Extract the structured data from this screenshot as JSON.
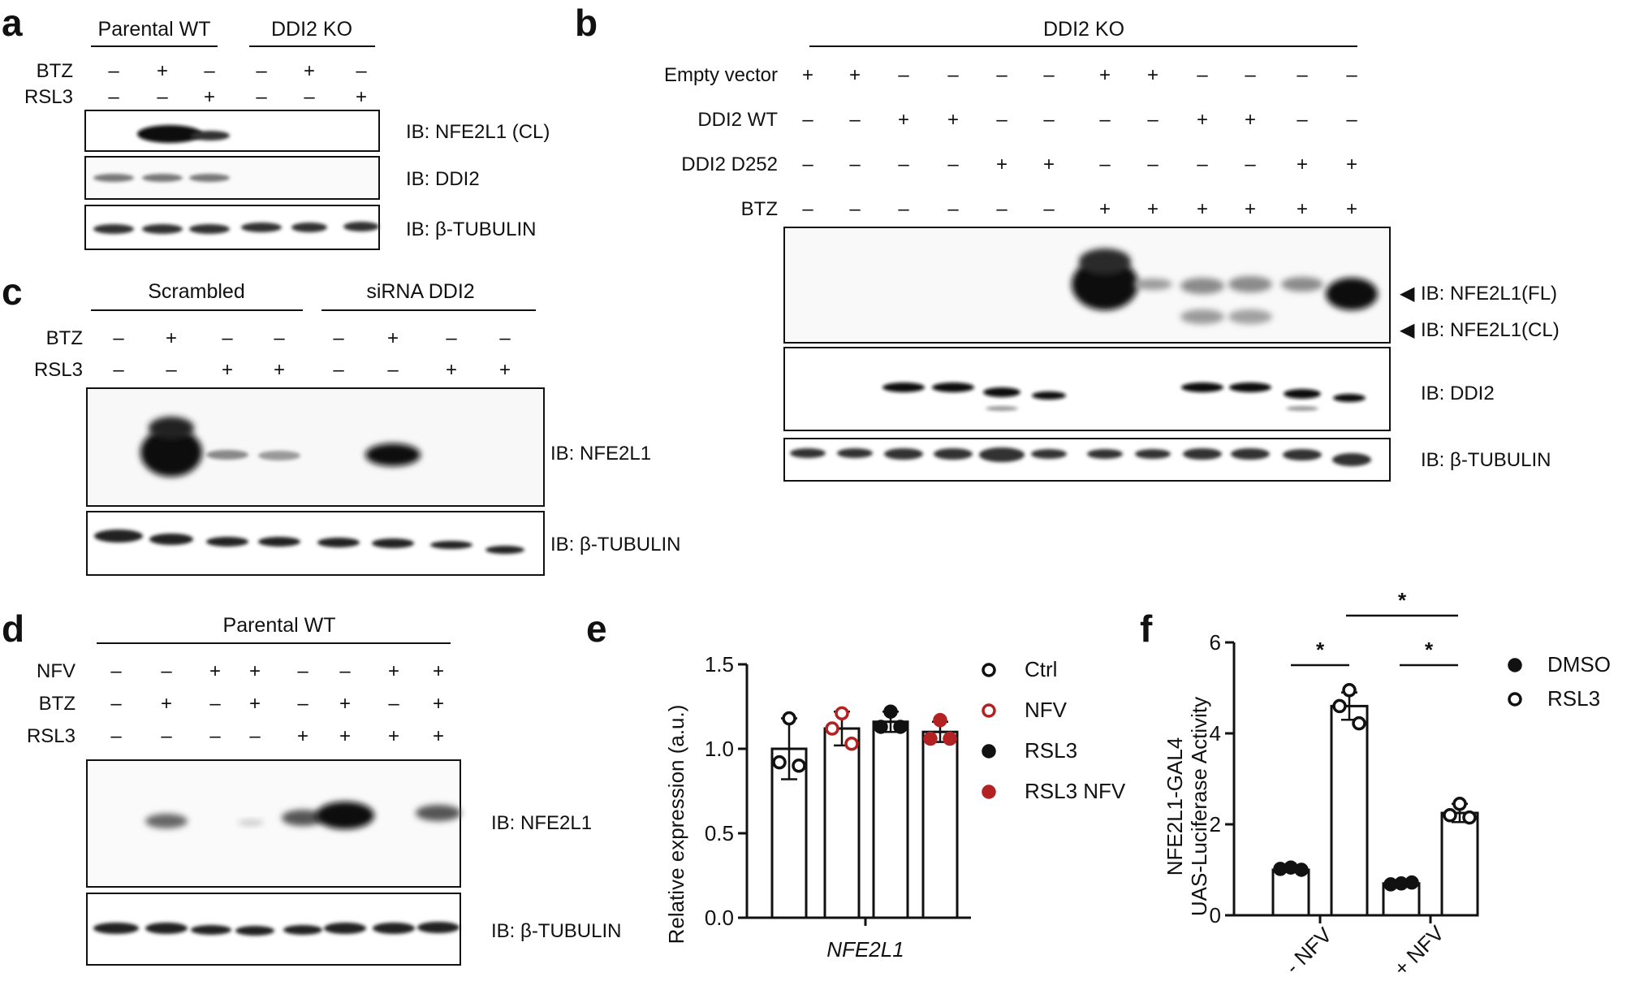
{
  "a": {
    "panel_letter": "a",
    "groups": [
      "Parental WT",
      "DDI2 KO"
    ],
    "rows": [
      {
        "label": "BTZ",
        "values": [
          "–",
          "+",
          "–",
          "–",
          "+",
          "–"
        ]
      },
      {
        "label": "RSL3",
        "values": [
          "–",
          "–",
          "+",
          "–",
          "–",
          "+"
        ]
      }
    ],
    "blots": [
      "IB: NFE2L1 (CL)",
      "IB: DDI2",
      "IB: β-TUBULIN"
    ]
  },
  "b": {
    "panel_letter": "b",
    "header": "DDI2 KO",
    "rows": [
      {
        "label": "Empty vector",
        "values": [
          "+",
          "+",
          "–",
          "–",
          "–",
          "–",
          "+",
          "+",
          "–",
          "–",
          "–",
          "–"
        ]
      },
      {
        "label": "DDI2 WT",
        "values": [
          "–",
          "–",
          "+",
          "+",
          "–",
          "–",
          "–",
          "–",
          "+",
          "+",
          "–",
          "–"
        ]
      },
      {
        "label": "DDI2 D252",
        "values": [
          "–",
          "–",
          "–",
          "–",
          "+",
          "+",
          "–",
          "–",
          "–",
          "–",
          "+",
          "+"
        ]
      },
      {
        "label": "BTZ",
        "values": [
          "–",
          "–",
          "–",
          "–",
          "–",
          "–",
          "+",
          "+",
          "+",
          "+",
          "+",
          "+"
        ]
      }
    ],
    "blots": [
      "IB: NFE2L1(FL)",
      "IB: NFE2L1(CL)",
      "IB: DDI2",
      "IB: β-TUBULIN"
    ],
    "arrow_glyph": "◀"
  },
  "c": {
    "panel_letter": "c",
    "groups": [
      "Scrambled",
      "siRNA DDI2"
    ],
    "rows": [
      {
        "label": "BTZ",
        "values": [
          "–",
          "+",
          "–",
          "–",
          "–",
          "+",
          "–",
          "–"
        ]
      },
      {
        "label": "RSL3",
        "values": [
          "–",
          "–",
          "+",
          "+",
          "–",
          "–",
          "+",
          "+"
        ]
      }
    ],
    "blots": [
      "IB: NFE2L1",
      "IB: β-TUBULIN"
    ]
  },
  "d": {
    "panel_letter": "d",
    "header": "Parental WT",
    "rows": [
      {
        "label": "NFV",
        "values": [
          "–",
          "–",
          "+",
          "+",
          "–",
          "–",
          "+",
          "+"
        ]
      },
      {
        "label": "BTZ",
        "values": [
          "–",
          "+",
          "–",
          "+",
          "–",
          "+",
          "–",
          "+"
        ]
      },
      {
        "label": "RSL3",
        "values": [
          "–",
          "–",
          "–",
          "–",
          "+",
          "+",
          "+",
          "+"
        ]
      }
    ],
    "blots": [
      "IB: NFE2L1",
      "IB: β-TUBULIN"
    ]
  },
  "colors": {
    "black": "#111111",
    "red": "#b22222",
    "blot_band": "#0b0b0b"
  },
  "chart_data": [
    {
      "panel_letter": "e",
      "type": "bar",
      "categories": [
        "NFE2L1"
      ],
      "ylabel": "Relative expression (a.u.)",
      "ylim": [
        0,
        1.5
      ],
      "yticks": [
        "0.0",
        "0.5",
        "1.0",
        "1.5"
      ],
      "series": [
        {
          "name": "Ctrl",
          "marker": "open",
          "color": "#111111",
          "values": [
            1.0
          ],
          "error": 0.18,
          "points": [
            1.18,
            0.92,
            0.9
          ]
        },
        {
          "name": "NFV",
          "marker": "open",
          "color": "#b22222",
          "values": [
            1.12
          ],
          "error": 0.1,
          "points": [
            1.21,
            1.12,
            1.03
          ]
        },
        {
          "name": "RSL3",
          "marker": "filled",
          "color": "#111111",
          "values": [
            1.16
          ],
          "error": 0.06,
          "points": [
            1.22,
            1.13,
            1.13
          ]
        },
        {
          "name": "RSL3 NFV",
          "marker": "filled",
          "color": "#b22222",
          "values": [
            1.1
          ],
          "error": 0.06,
          "points": [
            1.17,
            1.06,
            1.06
          ]
        }
      ],
      "legend": "right"
    },
    {
      "panel_letter": "f",
      "type": "bar",
      "categories": [
        "- NFV",
        "+ NFV"
      ],
      "ylabel": "NFE2L1-GAL4 UAS-Luciferase Activity",
      "ylabel_lines": [
        "NFE2L1-GAL4",
        "UAS-Luciferase Activity"
      ],
      "ylim": [
        0,
        6
      ],
      "yticks": [
        "0",
        "2",
        "4",
        "6"
      ],
      "series": [
        {
          "name": "DMSO",
          "marker": "filled",
          "color": "#111111",
          "values": [
            1.0,
            0.7
          ],
          "error": [
            0.05,
            0.03
          ],
          "points": [
            [
              1.02,
              1.05,
              1.0
            ],
            [
              0.68,
              0.7,
              0.72
            ]
          ]
        },
        {
          "name": "RSL3",
          "marker": "open",
          "color": "#111111",
          "values": [
            4.6,
            2.25
          ],
          "error": [
            0.3,
            0.2
          ],
          "points": [
            [
              4.95,
              4.6,
              4.22
            ],
            [
              2.45,
              2.2,
              2.15
            ]
          ]
        }
      ],
      "significance": [
        "*",
        "*",
        "*"
      ],
      "legend": "top-right"
    }
  ]
}
